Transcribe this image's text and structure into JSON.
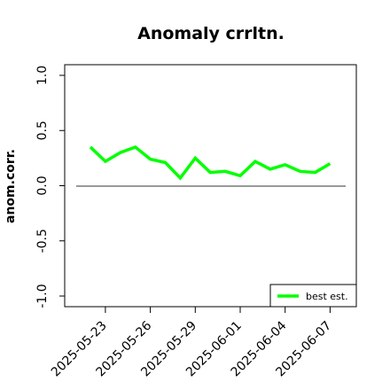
{
  "chart_data": {
    "type": "line",
    "title": "Anomaly crrltn.",
    "xlabel": "",
    "ylabel": "anom.corr.",
    "ylim": [
      -1.0,
      1.0
    ],
    "yticks": [
      "-1.0",
      "-0.5",
      "0.0",
      "0.5",
      "1.0"
    ],
    "xticks": [
      "2025-05-23",
      "2025-05-26",
      "2025-05-29",
      "2025-06-01",
      "2025-06-04",
      "2025-06-07"
    ],
    "highlighted_xtick": "2025-05-29",
    "highlight_color": "#228B22",
    "x": [
      "2025-05-22",
      "2025-05-23",
      "2025-05-24",
      "2025-05-25",
      "2025-05-26",
      "2025-05-27",
      "2025-05-28",
      "2025-05-29",
      "2025-05-30",
      "2025-05-31",
      "2025-06-01",
      "2025-06-02",
      "2025-06-03",
      "2025-06-04",
      "2025-06-05",
      "2025-06-06",
      "2025-06-07"
    ],
    "series": [
      {
        "name": "best est.",
        "color": "#00FF00",
        "values": [
          0.35,
          0.22,
          0.3,
          0.35,
          0.24,
          0.21,
          0.07,
          0.25,
          0.12,
          0.13,
          0.09,
          0.22,
          0.15,
          0.19,
          0.13,
          0.12,
          0.2
        ]
      }
    ],
    "reference_line": {
      "y": 0.0,
      "color": "#333333"
    },
    "legend_position": "bottom-right",
    "grid": false
  }
}
